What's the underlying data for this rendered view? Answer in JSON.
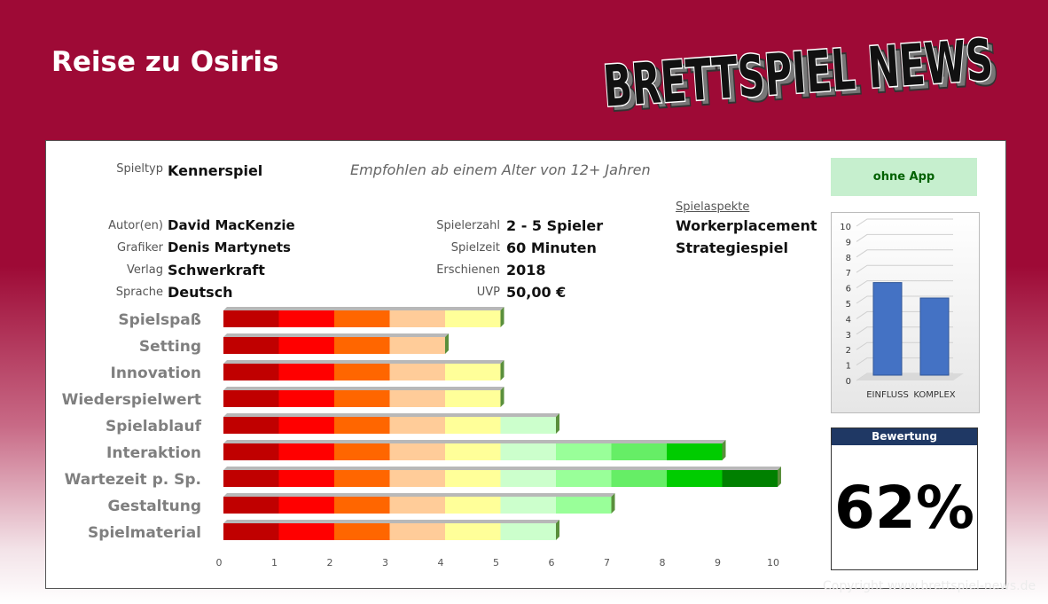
{
  "title": "Reise zu Osiris",
  "logo_text": "BRETTSPIEL NEWS",
  "info": {
    "spieltyp_label": "Spieltyp",
    "spieltyp": "Kennerspiel",
    "empfehlung": "Empfohlen ab einem Alter von 12+ Jahren",
    "autor_label": "Autor(en)",
    "autor": "David MacKenzie",
    "grafiker_label": "Grafiker",
    "grafiker": "Denis Martynets",
    "verlag_label": "Verlag",
    "verlag": "Schwerkraft",
    "sprache_label": "Sprache",
    "sprache": "Deutsch",
    "spielerzahl_label": "Spielerzahl",
    "spielerzahl": "2 - 5 Spieler",
    "spielzeit_label": "Spielzeit",
    "spielzeit": "60 Minuten",
    "erschienen_label": "Erschienen",
    "erschienen": "2018",
    "uvp_label": "UVP",
    "uvp": "50,00 €",
    "aspekte_label": "Spielaspekte",
    "aspekte": [
      "Workerplacement",
      "Strategiespiel"
    ]
  },
  "app_label": "ohne App",
  "rating": {
    "label": "Bewertung",
    "value": "62%"
  },
  "copyright": "Copyright www.brettspiel-news.de",
  "colors": {
    "segments": [
      "#c00000",
      "#ff0000",
      "#ff6600",
      "#ffcc99",
      "#ffff99",
      "#ccffcc",
      "#99ff99",
      "#66ee66",
      "#00cc00",
      "#008000"
    ],
    "mini_bar": "#4472c4"
  },
  "chart_data": [
    {
      "type": "bar",
      "orientation": "horizontal",
      "categories": [
        "Spielspaß",
        "Setting",
        "Innovation",
        "Wiederspielwert",
        "Spielablauf",
        "Interaktion",
        "Wartezeit p. Sp.",
        "Gestaltung",
        "Spielmaterial"
      ],
      "values": [
        5,
        4,
        5,
        5,
        6,
        9,
        10,
        7,
        6
      ],
      "xlim": [
        0,
        10
      ],
      "xticks": [
        0,
        1,
        2,
        3,
        4,
        5,
        6,
        7,
        8,
        9,
        10
      ],
      "grid": false
    },
    {
      "type": "bar",
      "categories": [
        "EINFLUSS",
        "KOMPLEX"
      ],
      "values": [
        6,
        5
      ],
      "ylim": [
        0,
        10
      ],
      "yticks": [
        0,
        1,
        2,
        3,
        4,
        5,
        6,
        7,
        8,
        9,
        10
      ],
      "grid": true
    }
  ]
}
